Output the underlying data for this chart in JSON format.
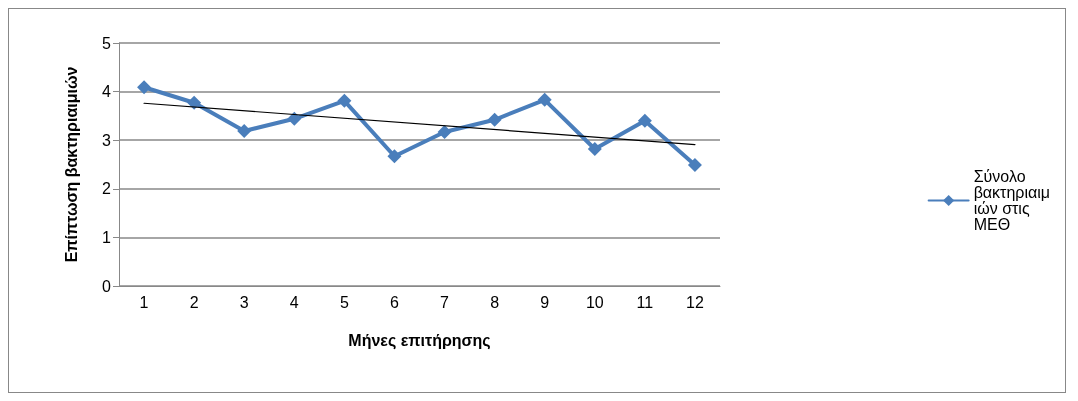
{
  "chart_data": {
    "type": "line",
    "xlabel": "Μήνες επιτήρησης",
    "ylabel": "Επίπτωση βακτηριαιμιών",
    "categories": [
      "1",
      "2",
      "3",
      "4",
      "5",
      "6",
      "7",
      "8",
      "9",
      "10",
      "11",
      "12"
    ],
    "series": [
      {
        "name": "Σύνολο βακτηριαιμιών στις ΜΕΘ",
        "color": "#4a7ebb",
        "marker": "diamond",
        "values": [
          4.09,
          3.77,
          3.19,
          3.44,
          3.81,
          2.67,
          3.17,
          3.42,
          3.83,
          2.82,
          3.4,
          2.49
        ]
      },
      {
        "type": "line",
        "color": "#000000",
        "marker": "none",
        "x": [
          "1",
          "12"
        ],
        "values": [
          3.76,
          2.91
        ]
      }
    ],
    "ylim": [
      0,
      5
    ],
    "yticks": [
      0,
      1,
      2,
      3,
      4,
      5
    ],
    "grid": "y",
    "legend": "right"
  }
}
